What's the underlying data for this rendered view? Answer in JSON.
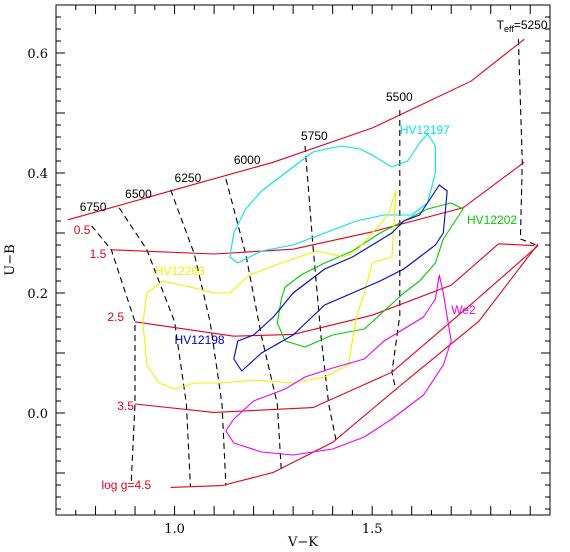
{
  "chart_data": {
    "type": "line",
    "xlabel": "V−K",
    "ylabel": "U−B",
    "xlim": [
      0.7,
      1.95
    ],
    "ylim": [
      -0.17,
      0.68
    ],
    "xticks": [
      {
        "v": 1.0,
        "label": "1.0"
      },
      {
        "v": 1.5,
        "label": "1.5"
      }
    ],
    "yticks": [
      {
        "v": 0.0,
        "label": "0.0"
      },
      {
        "v": 0.2,
        "label": "0.2"
      },
      {
        "v": 0.4,
        "label": "0.4"
      },
      {
        "v": 0.6,
        "label": "0.6"
      }
    ],
    "colors": {
      "logg": "#e4001c",
      "teff": "#000000",
      "HV12197": "#00e5e5",
      "HV12202": "#00cc00",
      "HV12203": "#f0f000",
      "HV12198": "#0000cc",
      "We2": "#ee00ee"
    },
    "logg_lines": [
      {
        "label": "0.5",
        "pts": [
          [
            0.73,
            0.322
          ],
          [
            1.0,
            0.372
          ],
          [
            1.25,
            0.418
          ],
          [
            1.5,
            0.475
          ],
          [
            1.75,
            0.553
          ],
          [
            1.885,
            0.623
          ]
        ]
      },
      {
        "label": "1.5",
        "pts": [
          [
            0.84,
            0.272
          ],
          [
            1.1,
            0.265
          ],
          [
            1.3,
            0.273
          ],
          [
            1.5,
            0.302
          ],
          [
            1.73,
            0.342
          ],
          [
            1.885,
            0.418
          ]
        ]
      },
      {
        "label": "2.5",
        "pts": [
          [
            0.9,
            0.152
          ],
          [
            1.15,
            0.128
          ],
          [
            1.3,
            0.131
          ],
          [
            1.5,
            0.163
          ],
          [
            1.7,
            0.213
          ],
          [
            1.82,
            0.282
          ],
          [
            1.91,
            0.279
          ]
        ]
      },
      {
        "label": "3.5",
        "pts": [
          [
            0.9,
            0.015
          ],
          [
            1.1,
            0.001
          ],
          [
            1.35,
            0.009
          ],
          [
            1.55,
            0.068
          ],
          [
            1.75,
            0.181
          ],
          [
            1.92,
            0.279
          ]
        ]
      },
      {
        "label": "log g=4.5",
        "pts": [
          [
            0.99,
            -0.124
          ],
          [
            1.12,
            -0.121
          ],
          [
            1.25,
            -0.099
          ],
          [
            1.4,
            -0.049
          ],
          [
            1.57,
            0.045
          ],
          [
            1.77,
            0.153
          ],
          [
            1.92,
            0.282
          ]
        ]
      }
    ],
    "teff_lines": [
      {
        "label": "6750",
        "pts": [
          [
            0.79,
            0.312
          ],
          [
            0.84,
            0.272
          ],
          [
            0.9,
            0.152
          ],
          [
            0.9,
            0.015
          ],
          [
            0.89,
            -0.12
          ]
        ]
      },
      {
        "label": "6500",
        "pts": [
          [
            0.86,
            0.342
          ],
          [
            0.93,
            0.272
          ],
          [
            1.0,
            0.152
          ],
          [
            1.03,
            0.015
          ],
          [
            1.04,
            -0.122
          ]
        ]
      },
      {
        "label": "6250",
        "pts": [
          [
            0.99,
            0.372
          ],
          [
            1.05,
            0.265
          ],
          [
            1.09,
            0.152
          ],
          [
            1.12,
            0.015
          ],
          [
            1.13,
            -0.121
          ]
        ]
      },
      {
        "label": "6000",
        "pts": [
          [
            1.13,
            0.39
          ],
          [
            1.18,
            0.265
          ],
          [
            1.22,
            0.128
          ],
          [
            1.26,
            0.015
          ],
          [
            1.27,
            -0.096
          ]
        ]
      },
      {
        "label": "5750",
        "pts": [
          [
            1.33,
            0.445
          ],
          [
            1.35,
            0.28
          ],
          [
            1.37,
            0.131
          ],
          [
            1.39,
            0.015
          ],
          [
            1.41,
            -0.05
          ]
        ]
      },
      {
        "label": "5500",
        "pts": [
          [
            1.57,
            0.505
          ],
          [
            1.57,
            0.305
          ],
          [
            1.57,
            0.163
          ],
          [
            1.55,
            0.068
          ],
          [
            1.56,
            0.038
          ]
        ]
      },
      {
        "label": "T_eff=5250",
        "pts": [
          [
            1.87,
            0.623
          ],
          [
            1.88,
            0.418
          ],
          [
            1.875,
            0.29
          ],
          [
            1.92,
            0.279
          ]
        ]
      }
    ],
    "teff_labels": [
      {
        "text": "6750",
        "x": 0.76,
        "y": 0.337
      },
      {
        "text": "6500",
        "x": 0.875,
        "y": 0.358
      },
      {
        "text": "6250",
        "x": 1.0,
        "y": 0.385
      },
      {
        "text": "6000",
        "x": 1.15,
        "y": 0.415
      },
      {
        "text": "5750",
        "x": 1.32,
        "y": 0.455
      },
      {
        "text": "5500",
        "x": 1.535,
        "y": 0.52
      },
      {
        "text": "T_eff=5250",
        "x": 1.815,
        "y": 0.64
      }
    ],
    "logg_labels": [
      {
        "text": "0.5",
        "x": 0.745,
        "y": 0.305
      },
      {
        "text": "1.5",
        "x": 0.785,
        "y": 0.265
      },
      {
        "text": "2.5",
        "x": 0.83,
        "y": 0.16
      },
      {
        "text": "3.5",
        "x": 0.855,
        "y": 0.012
      },
      {
        "text": "log g=4.5",
        "x": 0.815,
        "y": -0.12
      }
    ],
    "star_labels": [
      {
        "text": "HV12197",
        "x": 1.57,
        "y": 0.465,
        "color": "#00e5e5"
      },
      {
        "text": "HV12202",
        "x": 1.74,
        "y": 0.315,
        "color": "#00cc00"
      },
      {
        "text": "HV12203",
        "x": 0.95,
        "y": 0.23,
        "color": "#f0f000"
      },
      {
        "text": "HV12198",
        "x": 1.0,
        "y": 0.115,
        "color": "#0000cc"
      },
      {
        "text": "We2",
        "x": 1.7,
        "y": 0.165,
        "color": "#ee00ee"
      }
    ],
    "loops": [
      {
        "name": "HV12197",
        "pts": [
          [
            1.14,
            0.26
          ],
          [
            1.15,
            0.3
          ],
          [
            1.18,
            0.34
          ],
          [
            1.22,
            0.37
          ],
          [
            1.28,
            0.4
          ],
          [
            1.35,
            0.435
          ],
          [
            1.42,
            0.445
          ],
          [
            1.47,
            0.44
          ],
          [
            1.5,
            0.43
          ],
          [
            1.55,
            0.41
          ],
          [
            1.59,
            0.42
          ],
          [
            1.62,
            0.45
          ],
          [
            1.64,
            0.465
          ],
          [
            1.66,
            0.445
          ],
          [
            1.66,
            0.4
          ],
          [
            1.64,
            0.35
          ],
          [
            1.6,
            0.33
          ],
          [
            1.53,
            0.33
          ],
          [
            1.46,
            0.32
          ],
          [
            1.38,
            0.3
          ],
          [
            1.3,
            0.28
          ],
          [
            1.22,
            0.27
          ],
          [
            1.16,
            0.25
          ],
          [
            1.14,
            0.26
          ]
        ]
      },
      {
        "name": "HV12202",
        "pts": [
          [
            1.27,
            0.19
          ],
          [
            1.26,
            0.15
          ],
          [
            1.28,
            0.12
          ],
          [
            1.33,
            0.11
          ],
          [
            1.4,
            0.13
          ],
          [
            1.48,
            0.14
          ],
          [
            1.53,
            0.17
          ],
          [
            1.58,
            0.2
          ],
          [
            1.62,
            0.22
          ],
          [
            1.66,
            0.25
          ],
          [
            1.68,
            0.29
          ],
          [
            1.71,
            0.32
          ],
          [
            1.73,
            0.34
          ],
          [
            1.7,
            0.35
          ],
          [
            1.64,
            0.34
          ],
          [
            1.58,
            0.32
          ],
          [
            1.52,
            0.3
          ],
          [
            1.45,
            0.27
          ],
          [
            1.38,
            0.25
          ],
          [
            1.32,
            0.23
          ],
          [
            1.28,
            0.21
          ],
          [
            1.27,
            0.19
          ]
        ]
      },
      {
        "name": "HV12203",
        "pts": [
          [
            0.92,
            0.15
          ],
          [
            0.93,
            0.2
          ],
          [
            0.97,
            0.22
          ],
          [
            1.04,
            0.21
          ],
          [
            1.1,
            0.2
          ],
          [
            1.14,
            0.2
          ],
          [
            1.19,
            0.23
          ],
          [
            1.27,
            0.25
          ],
          [
            1.36,
            0.27
          ],
          [
            1.43,
            0.26
          ],
          [
            1.46,
            0.27
          ],
          [
            1.5,
            0.3
          ],
          [
            1.54,
            0.33
          ],
          [
            1.56,
            0.37
          ],
          [
            1.55,
            0.26
          ],
          [
            1.5,
            0.25
          ],
          [
            1.48,
            0.2
          ],
          [
            1.46,
            0.16
          ],
          [
            1.45,
            0.12
          ],
          [
            1.44,
            0.08
          ],
          [
            1.38,
            0.06
          ],
          [
            1.3,
            0.05
          ],
          [
            1.2,
            0.055
          ],
          [
            1.12,
            0.05
          ],
          [
            1.05,
            0.05
          ],
          [
            1.0,
            0.04
          ],
          [
            0.96,
            0.05
          ],
          [
            0.93,
            0.08
          ],
          [
            0.92,
            0.15
          ]
        ]
      },
      {
        "name": "HV12198",
        "pts": [
          [
            1.16,
            0.12
          ],
          [
            1.15,
            0.09
          ],
          [
            1.17,
            0.07
          ],
          [
            1.22,
            0.1
          ],
          [
            1.3,
            0.13
          ],
          [
            1.38,
            0.18
          ],
          [
            1.45,
            0.2
          ],
          [
            1.52,
            0.22
          ],
          [
            1.58,
            0.24
          ],
          [
            1.62,
            0.26
          ],
          [
            1.66,
            0.28
          ],
          [
            1.68,
            0.3
          ],
          [
            1.69,
            0.37
          ],
          [
            1.67,
            0.38
          ],
          [
            1.65,
            0.36
          ],
          [
            1.62,
            0.33
          ],
          [
            1.58,
            0.32
          ],
          [
            1.55,
            0.3
          ],
          [
            1.5,
            0.28
          ],
          [
            1.45,
            0.26
          ],
          [
            1.38,
            0.24
          ],
          [
            1.3,
            0.2
          ],
          [
            1.25,
            0.16
          ],
          [
            1.2,
            0.13
          ],
          [
            1.16,
            0.12
          ]
        ]
      },
      {
        "name": "We2",
        "pts": [
          [
            1.13,
            -0.03
          ],
          [
            1.15,
            -0.01
          ],
          [
            1.2,
            0.02
          ],
          [
            1.28,
            0.04
          ],
          [
            1.33,
            0.06
          ],
          [
            1.4,
            0.075
          ],
          [
            1.48,
            0.09
          ],
          [
            1.53,
            0.12
          ],
          [
            1.58,
            0.14
          ],
          [
            1.63,
            0.16
          ],
          [
            1.66,
            0.19
          ],
          [
            1.67,
            0.23
          ],
          [
            1.68,
            0.2
          ],
          [
            1.69,
            0.16
          ],
          [
            1.7,
            0.12
          ],
          [
            1.68,
            0.08
          ],
          [
            1.63,
            0.03
          ],
          [
            1.55,
            -0.01
          ],
          [
            1.48,
            -0.04
          ],
          [
            1.4,
            -0.06
          ],
          [
            1.3,
            -0.07
          ],
          [
            1.22,
            -0.065
          ],
          [
            1.15,
            -0.05
          ],
          [
            1.13,
            -0.03
          ]
        ]
      }
    ]
  }
}
